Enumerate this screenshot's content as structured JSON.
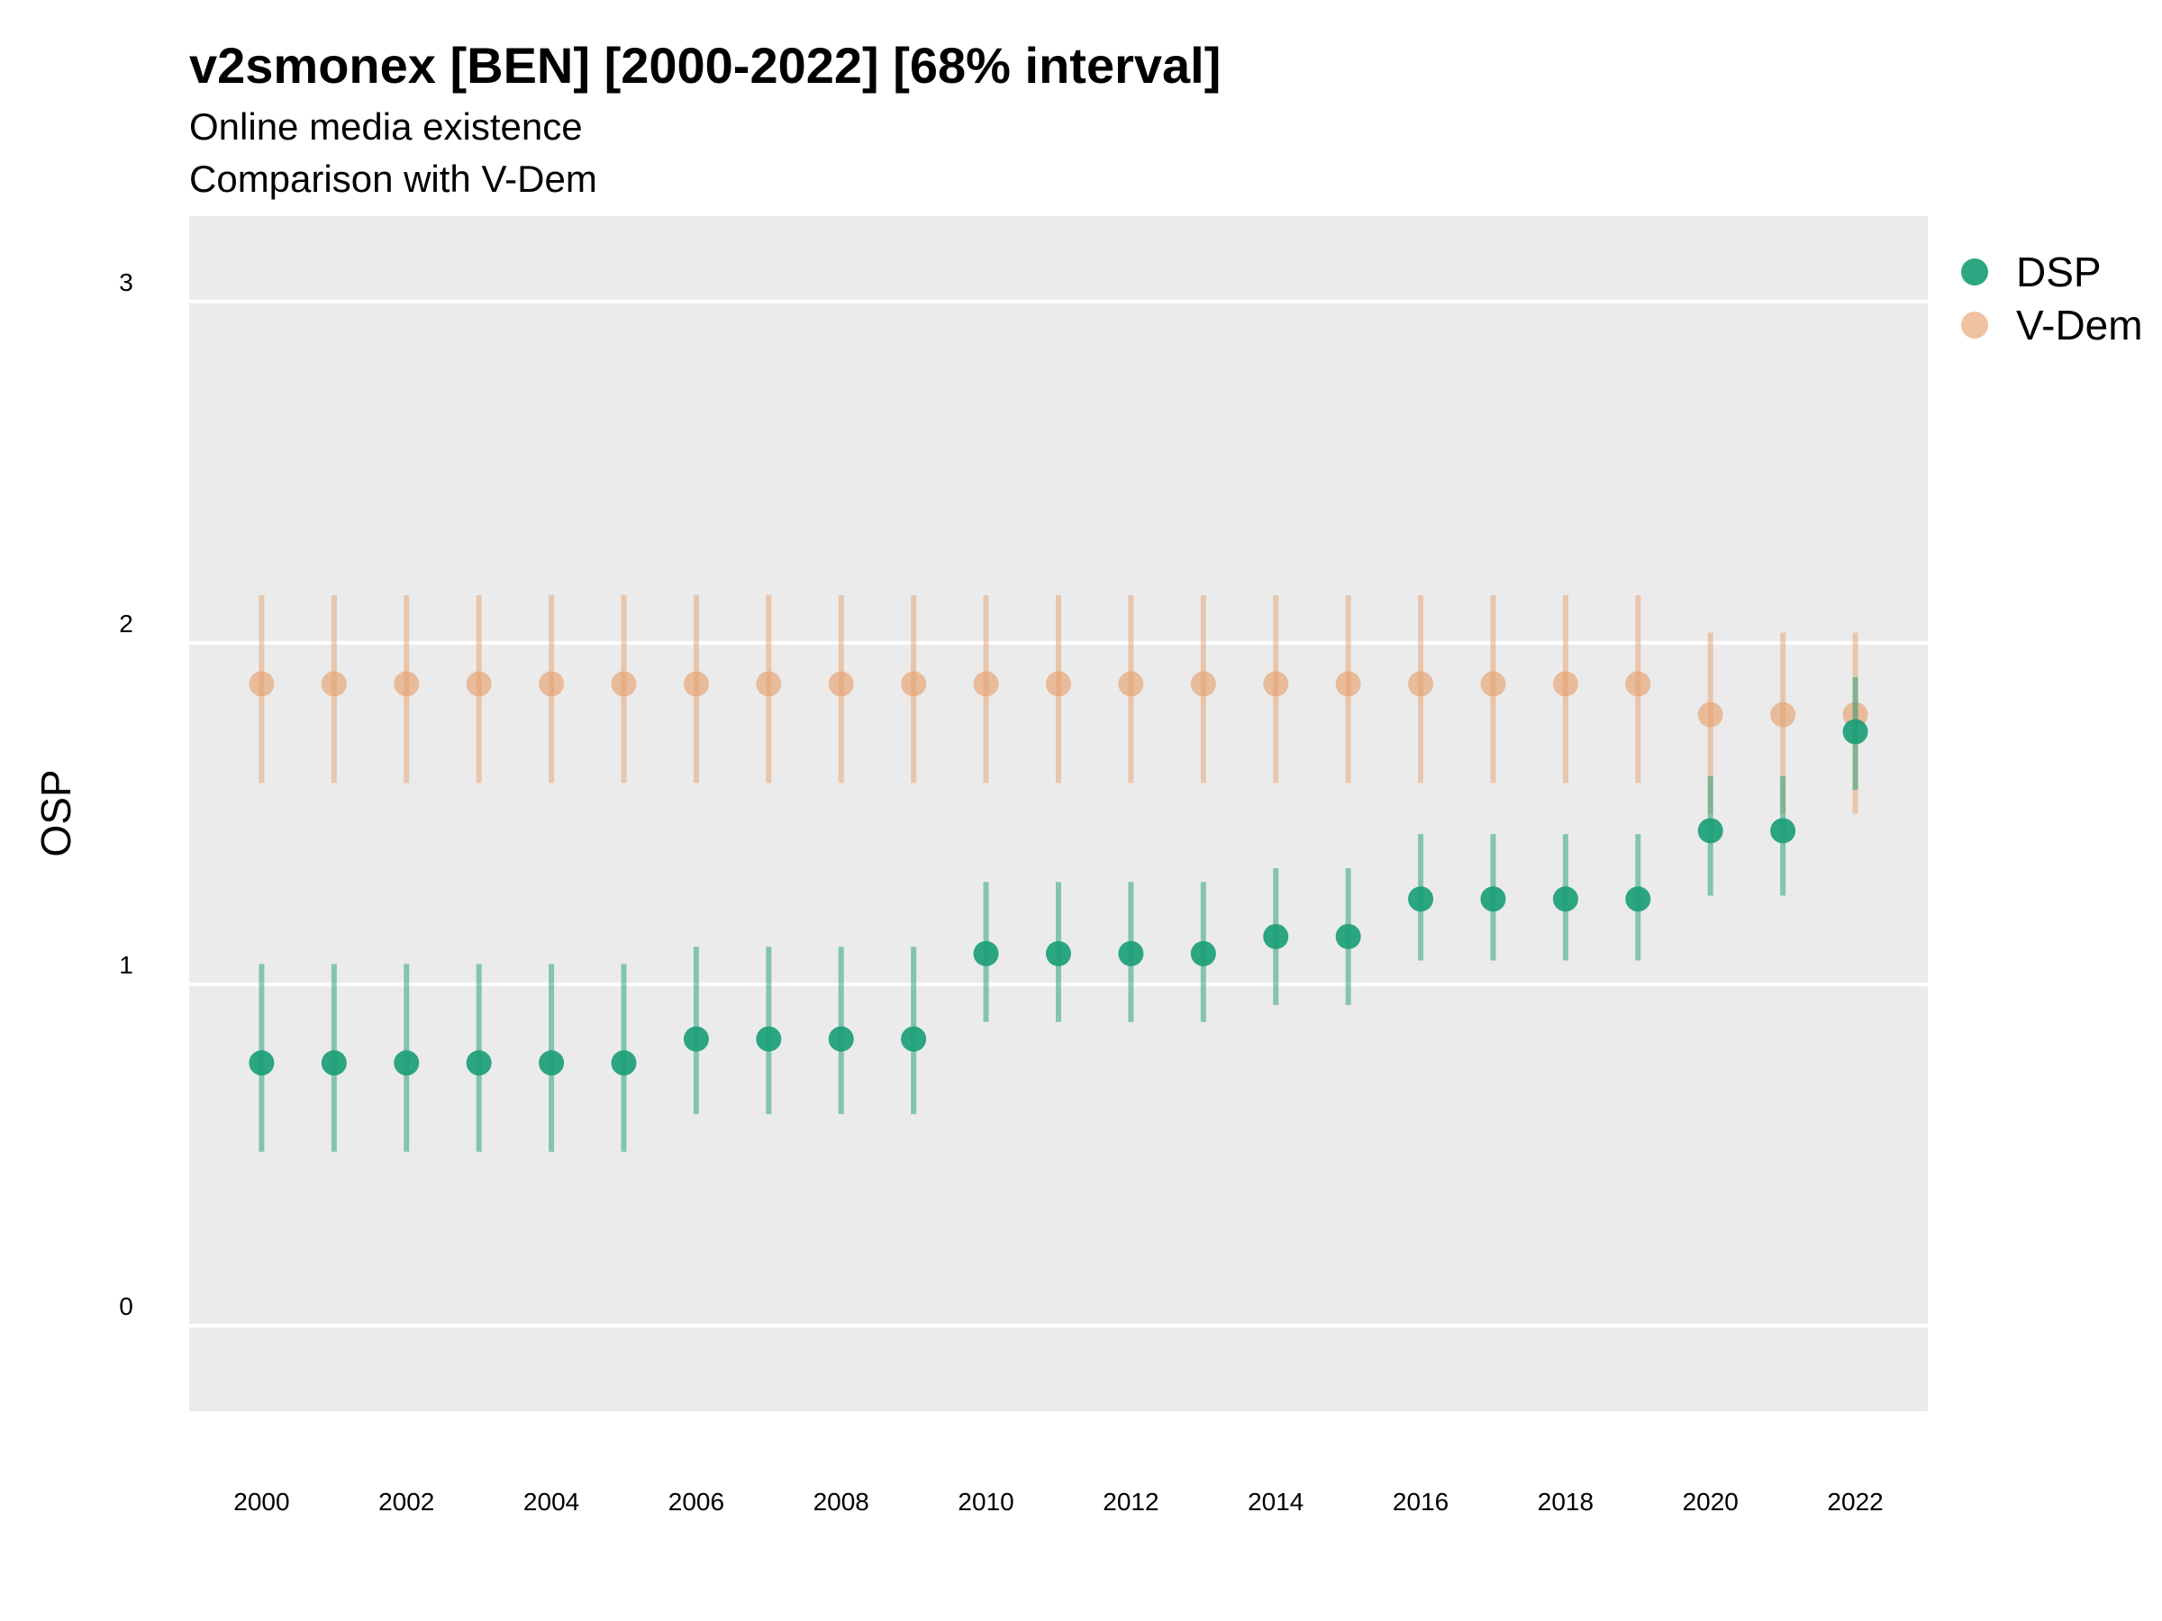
{
  "chart_data": {
    "type": "scatter",
    "title": "v2smonex [BEN] [2000-2022] [68% interval]",
    "subtitle_lines": [
      "Online media existence",
      "Comparison with V-Dem"
    ],
    "xlabel": "",
    "ylabel": "OSP",
    "xlim": [
      1999,
      2023
    ],
    "ylim": [
      -0.25,
      3.25
    ],
    "x_ticks": [
      2000,
      2002,
      2004,
      2006,
      2008,
      2010,
      2012,
      2014,
      2016,
      2018,
      2020,
      2022
    ],
    "y_ticks": [
      0,
      1,
      2,
      3
    ],
    "grid": true,
    "legend_position": "right",
    "x": [
      2000,
      2001,
      2002,
      2003,
      2004,
      2005,
      2006,
      2007,
      2008,
      2009,
      2010,
      2011,
      2012,
      2013,
      2014,
      2015,
      2016,
      2017,
      2018,
      2019,
      2020,
      2021,
      2022
    ],
    "series": [
      {
        "name": "V-Dem",
        "color": "#e6a26e",
        "values": [
          1.88,
          1.88,
          1.88,
          1.88,
          1.88,
          1.88,
          1.88,
          1.88,
          1.88,
          1.88,
          1.88,
          1.88,
          1.88,
          1.88,
          1.88,
          1.88,
          1.88,
          1.88,
          1.88,
          1.88,
          1.79,
          1.79,
          1.79
        ],
        "lower": [
          1.59,
          1.59,
          1.59,
          1.59,
          1.59,
          1.59,
          1.59,
          1.59,
          1.59,
          1.59,
          1.59,
          1.59,
          1.59,
          1.59,
          1.59,
          1.59,
          1.59,
          1.59,
          1.59,
          1.59,
          1.5,
          1.5,
          1.5
        ],
        "upper": [
          2.14,
          2.14,
          2.14,
          2.14,
          2.14,
          2.14,
          2.14,
          2.14,
          2.14,
          2.14,
          2.14,
          2.14,
          2.14,
          2.14,
          2.14,
          2.14,
          2.14,
          2.14,
          2.14,
          2.14,
          2.03,
          2.03,
          2.03
        ]
      },
      {
        "name": "DSP",
        "color": "#1b9e77",
        "values": [
          0.77,
          0.77,
          0.77,
          0.77,
          0.77,
          0.77,
          0.84,
          0.84,
          0.84,
          0.84,
          1.09,
          1.09,
          1.09,
          1.09,
          1.14,
          1.14,
          1.25,
          1.25,
          1.25,
          1.25,
          1.45,
          1.45,
          1.74
        ],
        "lower": [
          0.51,
          0.51,
          0.51,
          0.51,
          0.51,
          0.51,
          0.62,
          0.62,
          0.62,
          0.62,
          0.89,
          0.89,
          0.89,
          0.89,
          0.94,
          0.94,
          1.07,
          1.07,
          1.07,
          1.07,
          1.26,
          1.26,
          1.57
        ],
        "upper": [
          1.06,
          1.06,
          1.06,
          1.06,
          1.06,
          1.06,
          1.11,
          1.11,
          1.11,
          1.11,
          1.3,
          1.3,
          1.3,
          1.3,
          1.34,
          1.34,
          1.44,
          1.44,
          1.44,
          1.44,
          1.61,
          1.61,
          1.9
        ]
      }
    ],
    "legend": [
      {
        "name": "DSP",
        "color": "#1b9e77"
      },
      {
        "name": "V-Dem",
        "color": "#e6a26e"
      }
    ]
  },
  "colors": {
    "panel_background": "#ebebeb",
    "grid": "#ffffff"
  }
}
